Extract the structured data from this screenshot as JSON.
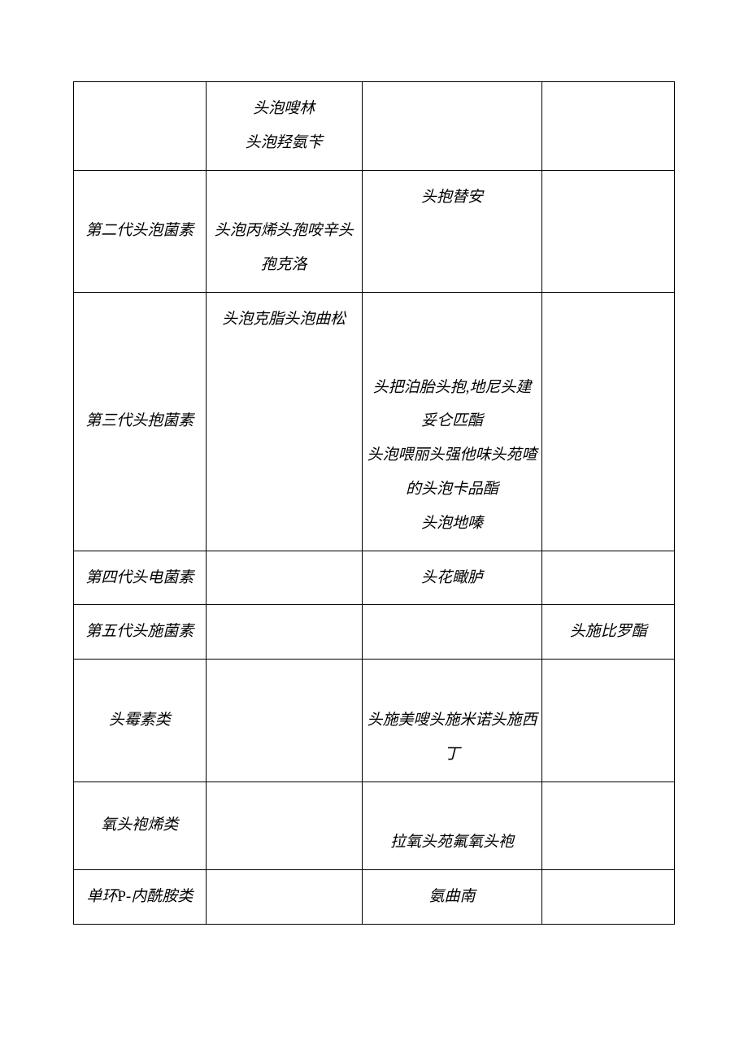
{
  "table": {
    "border_color": "#000000",
    "background_color": "#ffffff",
    "text_color": "#000000",
    "font_style": "italic",
    "font_family": "KaiTi",
    "font_size": 19,
    "line_height": 2.2,
    "column_widths_percent": [
      22,
      26,
      30,
      22
    ],
    "rows": [
      {
        "c1": "",
        "c2": "头泡嗖林\n头泡羟氨苄",
        "c3": "",
        "c4": ""
      },
      {
        "c1": "第二代头泡菌素",
        "c2": "\n头泡丙烯头孢咹辛头孢克洛",
        "c3": "头抱替安",
        "c4": ""
      },
      {
        "c1": "第三代头抱菌素",
        "c2": "头泡克脂头泡曲松",
        "c3": "\n\n头把泊胎头抱,地尼头建妥仑匹酯\n头泡喂丽头强他味头苑喳的头泡卡品酯头泡地嗪",
        "c4": ""
      },
      {
        "c1": "第四代头电菌素",
        "c2": "",
        "c3": "头花瞰胪",
        "c4": ""
      },
      {
        "c1": "第五代头施菌素",
        "c2": "",
        "c3": "",
        "c4": "头施比罗酯"
      },
      {
        "c1": "头霉素类",
        "c2": "",
        "c3": "\n头施美嗖头施米诺头施西丁",
        "c4": ""
      },
      {
        "c1": "氧头袍烯类",
        "c2": "",
        "c3": "\n拉氧头苑氟氧头袍",
        "c4": ""
      },
      {
        "c1": "单环P-内酰胺类",
        "c2": "",
        "c3": "氨曲南",
        "c4": ""
      }
    ]
  }
}
